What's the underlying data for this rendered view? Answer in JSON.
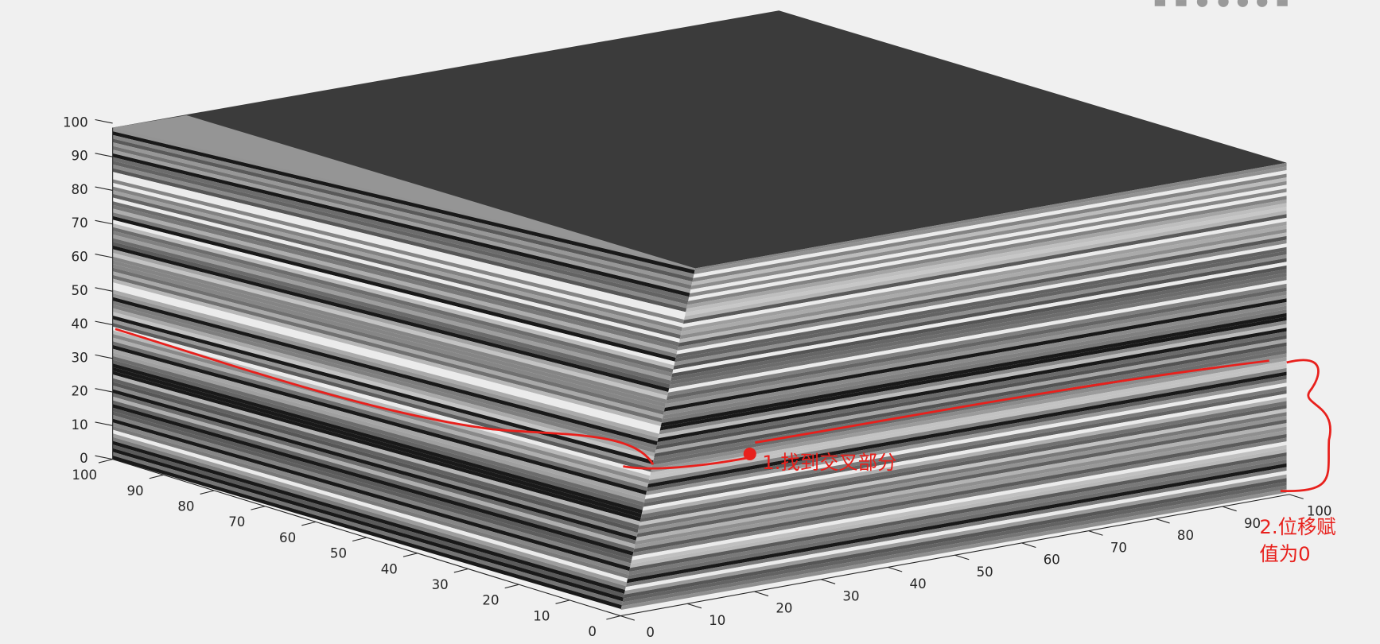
{
  "chart_data": {
    "type": "surface3d",
    "xlim": [
      0,
      100
    ],
    "xticks": [
      0,
      10,
      20,
      30,
      40,
      50,
      60,
      70,
      80,
      90,
      100
    ],
    "ylim": [
      0,
      100
    ],
    "yticks": [
      0,
      10,
      20,
      30,
      40,
      50,
      60,
      70,
      80,
      90,
      100
    ],
    "zlim": [
      0,
      100
    ],
    "zticks": [
      0,
      10,
      20,
      30,
      40,
      50,
      60,
      70,
      80,
      90,
      100
    ],
    "annotations": [
      "1.找到交叉部分",
      "2.位移赋",
      "值为0"
    ]
  }
}
